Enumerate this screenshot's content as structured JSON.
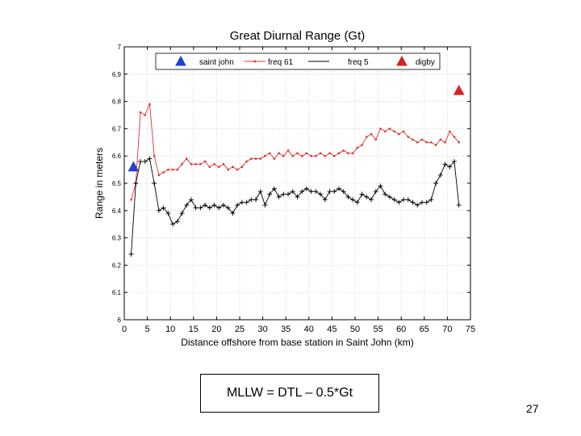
{
  "chart_data": {
    "type": "line",
    "title": "Great Diurnal Range (Gt)",
    "xlabel": "Distance offshore from base station in Saint John (km)",
    "ylabel": "Range in meters",
    "xlim": [
      0,
      75
    ],
    "ylim": [
      6,
      7
    ],
    "xticks": [
      0,
      5,
      10,
      15,
      20,
      25,
      30,
      35,
      40,
      45,
      50,
      55,
      60,
      65,
      70,
      75
    ],
    "yticks": [
      6,
      6.1,
      6.2,
      6.3,
      6.4,
      6.5,
      6.6,
      6.7,
      6.8,
      6.9,
      7
    ],
    "grid": true,
    "legend_position": "top",
    "series": [
      {
        "name": "saint john",
        "style": "marker-triangle",
        "color": "#1f3fd6",
        "x": [
          2
        ],
        "y": [
          6.56
        ]
      },
      {
        "name": "freq 61",
        "style": "line-dots",
        "color": "#e23030",
        "x": [
          1.5,
          2.5,
          3.5,
          4.5,
          5.5,
          6.5,
          7.5,
          8.5,
          9.5,
          10.5,
          11.5,
          12.5,
          13.5,
          14.5,
          15.5,
          16.5,
          17.5,
          18.5,
          19.5,
          20.5,
          21.5,
          22.5,
          23.5,
          24.5,
          25.5,
          26.5,
          27.5,
          28.5,
          29.5,
          30.5,
          31.5,
          32.5,
          33.5,
          34.5,
          35.5,
          36.5,
          37.5,
          38.5,
          39.5,
          40.5,
          41.5,
          42.5,
          43.5,
          44.5,
          45.5,
          46.5,
          47.5,
          48.5,
          49.5,
          50.5,
          51.5,
          52.5,
          53.5,
          54.5,
          55.5,
          56.5,
          57.5,
          58.5,
          59.5,
          60.5,
          61.5,
          62.5,
          63.5,
          64.5,
          65.5,
          66.5,
          67.5,
          68.5,
          69.5,
          70.5,
          71.5,
          72.5
        ],
        "y": [
          6.44,
          6.5,
          6.76,
          6.75,
          6.79,
          6.6,
          6.53,
          6.54,
          6.55,
          6.55,
          6.55,
          6.57,
          6.59,
          6.57,
          6.57,
          6.57,
          6.58,
          6.56,
          6.57,
          6.56,
          6.57,
          6.55,
          6.56,
          6.55,
          6.56,
          6.58,
          6.59,
          6.59,
          6.59,
          6.6,
          6.61,
          6.59,
          6.61,
          6.6,
          6.62,
          6.6,
          6.61,
          6.6,
          6.61,
          6.6,
          6.6,
          6.61,
          6.6,
          6.61,
          6.6,
          6.61,
          6.62,
          6.61,
          6.61,
          6.63,
          6.64,
          6.67,
          6.68,
          6.66,
          6.7,
          6.69,
          6.7,
          6.69,
          6.68,
          6.69,
          6.67,
          6.66,
          6.65,
          6.66,
          6.65,
          6.65,
          6.64,
          6.66,
          6.65,
          6.69,
          6.67,
          6.65
        ]
      },
      {
        "name": "freq 5",
        "style": "line-plus",
        "color": "#000000",
        "x": [
          1.5,
          2.5,
          3.5,
          4.5,
          5.5,
          6.5,
          7.5,
          8.5,
          9.5,
          10.5,
          11.5,
          12.5,
          13.5,
          14.5,
          15.5,
          16.5,
          17.5,
          18.5,
          19.5,
          20.5,
          21.5,
          22.5,
          23.5,
          24.5,
          25.5,
          26.5,
          27.5,
          28.5,
          29.5,
          30.5,
          31.5,
          32.5,
          33.5,
          34.5,
          35.5,
          36.5,
          37.5,
          38.5,
          39.5,
          40.5,
          41.5,
          42.5,
          43.5,
          44.5,
          45.5,
          46.5,
          47.5,
          48.5,
          49.5,
          50.5,
          51.5,
          52.5,
          53.5,
          54.5,
          55.5,
          56.5,
          57.5,
          58.5,
          59.5,
          60.5,
          61.5,
          62.5,
          63.5,
          64.5,
          65.5,
          66.5,
          67.5,
          68.5,
          69.5,
          70.5,
          71.5,
          72.5
        ],
        "y": [
          6.24,
          6.5,
          6.58,
          6.58,
          6.59,
          6.5,
          6.4,
          6.41,
          6.39,
          6.35,
          6.36,
          6.39,
          6.42,
          6.44,
          6.41,
          6.41,
          6.42,
          6.41,
          6.42,
          6.41,
          6.42,
          6.41,
          6.39,
          6.42,
          6.43,
          6.43,
          6.44,
          6.44,
          6.47,
          6.42,
          6.46,
          6.48,
          6.45,
          6.46,
          6.46,
          6.47,
          6.45,
          6.47,
          6.48,
          6.47,
          6.47,
          6.46,
          6.44,
          6.47,
          6.47,
          6.48,
          6.47,
          6.45,
          6.44,
          6.43,
          6.46,
          6.45,
          6.44,
          6.47,
          6.49,
          6.46,
          6.45,
          6.44,
          6.43,
          6.44,
          6.44,
          6.43,
          6.42,
          6.43,
          6.43,
          6.44,
          6.5,
          6.53,
          6.57,
          6.56,
          6.58,
          6.42
        ]
      },
      {
        "name": "digby",
        "style": "marker-triangle",
        "color": "#d62222",
        "x": [
          72.5
        ],
        "y": [
          6.84
        ]
      }
    ]
  },
  "formula": "MLLW = DTL – 0.5*Gt",
  "slide_number": "27"
}
